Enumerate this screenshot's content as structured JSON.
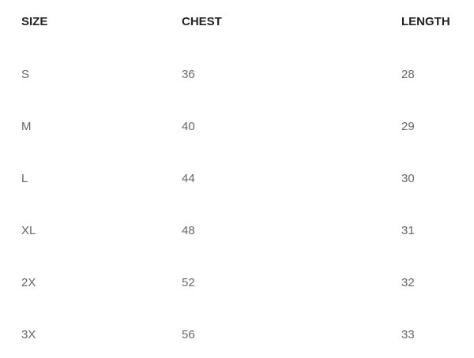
{
  "table": {
    "header": [
      "SIZE",
      "CHEST",
      "LENGTH"
    ],
    "rows": [
      [
        "S",
        "36",
        "28"
      ],
      [
        "M",
        "40",
        "29"
      ],
      [
        "L",
        "44",
        "30"
      ],
      [
        "XL",
        "48",
        "31"
      ],
      [
        "2X",
        "52",
        "32"
      ],
      [
        "3X",
        "56",
        "33"
      ]
    ]
  }
}
